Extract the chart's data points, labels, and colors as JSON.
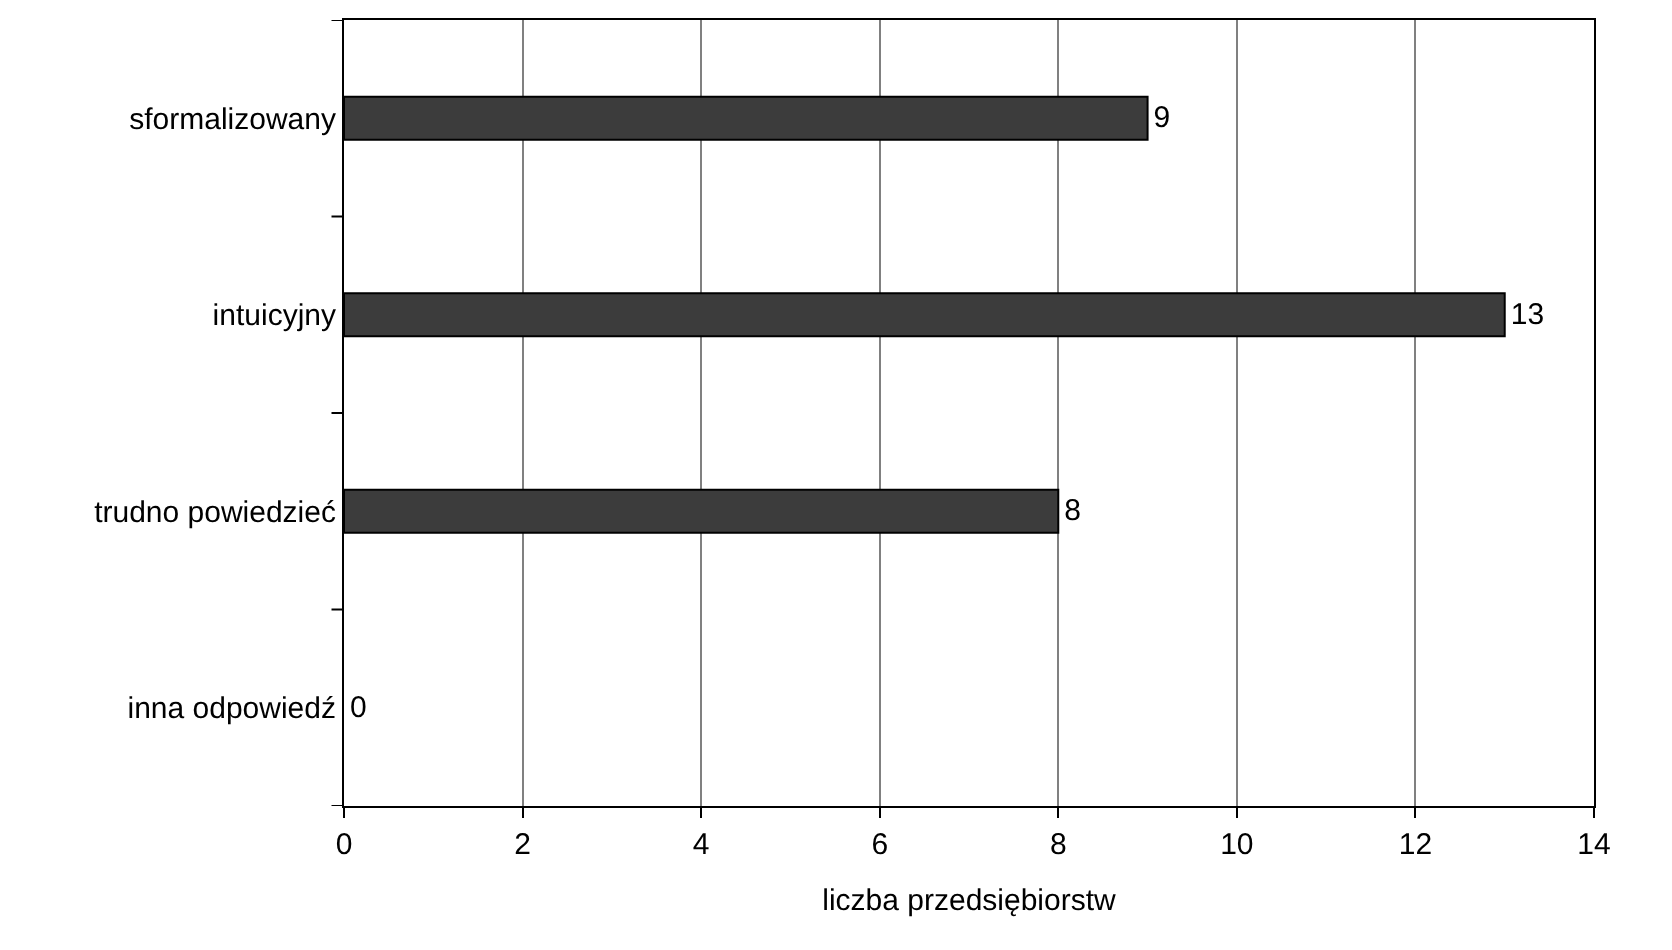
{
  "chart_data": {
    "type": "bar",
    "orientation": "horizontal",
    "xlabel": "liczba przedsiębiorstw",
    "categories": [
      "sformalizowany",
      "intuicyjny",
      "trudno powiedzieć",
      "inna odpowiedź"
    ],
    "values": [
      9,
      13,
      8,
      0
    ],
    "color": "#3c3c3c",
    "xlim": [
      0,
      14
    ],
    "xticks": [
      0,
      2,
      4,
      6,
      8,
      10,
      12,
      14
    ],
    "grid": "x",
    "data_labels": true
  }
}
